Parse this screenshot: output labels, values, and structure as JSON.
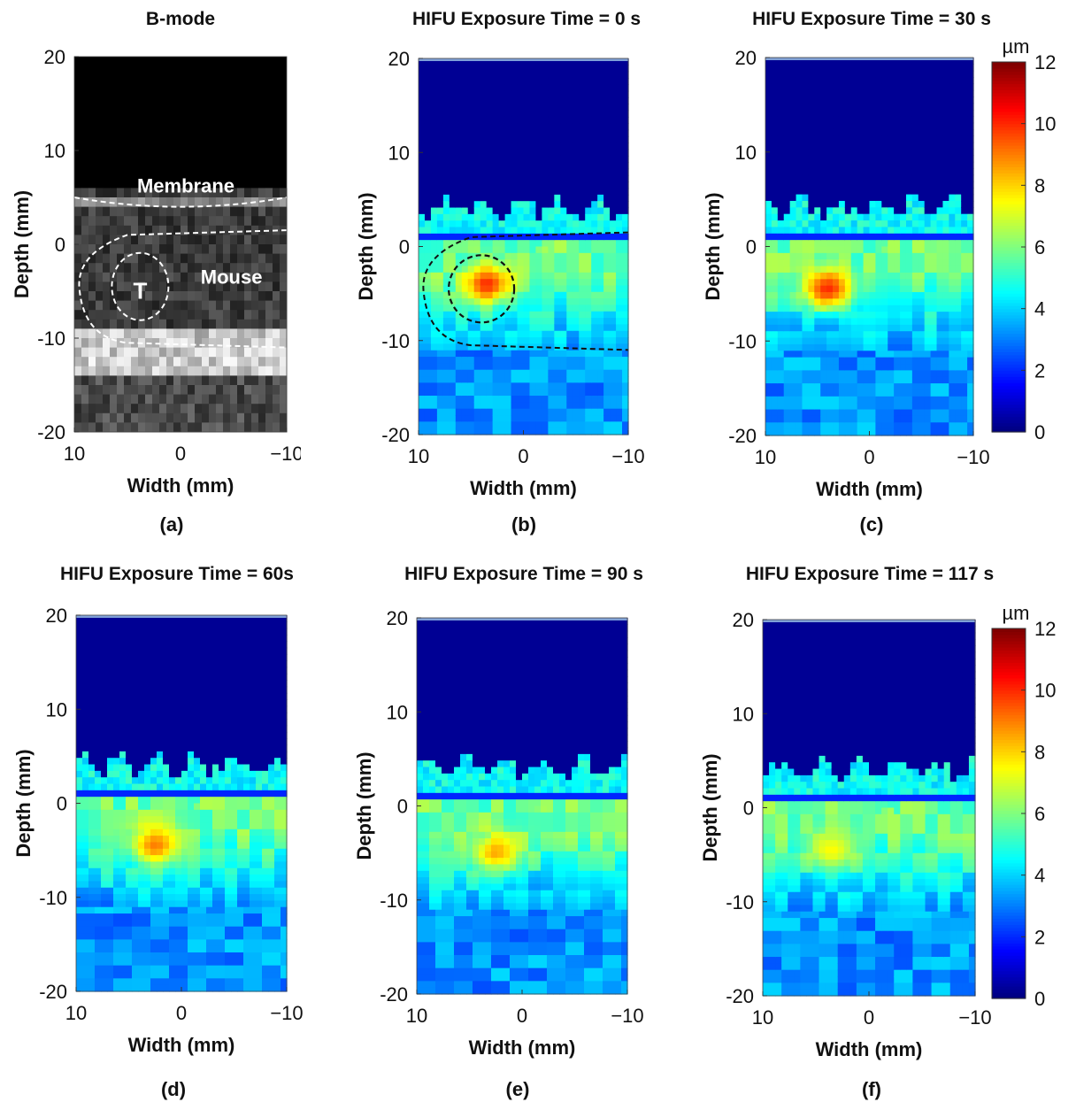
{
  "figure": {
    "panels": [
      {
        "id": "a",
        "title": "B-mode",
        "tag": "(a)",
        "type": "bmode",
        "xlabel": "Width (mm)",
        "ylabel": "Depth (mm)",
        "xticks": [
          "10",
          "0",
          "−10"
        ],
        "yticks": [
          "20",
          "10",
          "0",
          "-10",
          "-20"
        ],
        "annotations": {
          "membrane": "Membrane",
          "mouse": "Mouse",
          "tumor": "T"
        }
      },
      {
        "id": "b",
        "title": "HIFU Exposure Time = 0 s",
        "tag": "(b)",
        "type": "heatmap",
        "xlabel": "Width (mm)",
        "ylabel": "Depth (mm)",
        "xticks": [
          "10",
          "0",
          "−10"
        ],
        "yticks": [
          "20",
          "10",
          "0",
          "-10",
          "-20"
        ]
      },
      {
        "id": "c",
        "title": "HIFU Exposure Time = 30 s",
        "tag": "(c)",
        "type": "heatmap",
        "xlabel": "Width (mm)",
        "ylabel": "Depth (mm)",
        "xticks": [
          "10",
          "0",
          "−10"
        ],
        "yticks": [
          "20",
          "10",
          "0",
          "-10",
          "-20"
        ]
      },
      {
        "id": "d",
        "title": "HIFU Exposure Time = 60s",
        "tag": "(d)",
        "type": "heatmap",
        "xlabel": "Width (mm)",
        "ylabel": "Depth (mm)",
        "xticks": [
          "10",
          "0",
          "−10"
        ],
        "yticks": [
          "20",
          "10",
          "0",
          "-10",
          "-20"
        ]
      },
      {
        "id": "e",
        "title": "HIFU Exposure Time = 90 s",
        "tag": "(e)",
        "type": "heatmap",
        "xlabel": "Width (mm)",
        "ylabel": "Depth (mm)",
        "xticks": [
          "10",
          "0",
          "−10"
        ],
        "yticks": [
          "20",
          "10",
          "0",
          "-10",
          "-20"
        ]
      },
      {
        "id": "f",
        "title": "HIFU Exposure Time = 117 s",
        "tag": "(f)",
        "type": "heatmap",
        "xlabel": "Width (mm)",
        "ylabel": "Depth (mm)",
        "xticks": [
          "10",
          "0",
          "−10"
        ],
        "yticks": [
          "20",
          "10",
          "0",
          "-10",
          "-20"
        ]
      }
    ],
    "colorbar": {
      "unit": "µm",
      "ticks": [
        "0",
        "2",
        "4",
        "6",
        "8",
        "10",
        "12"
      ]
    }
  },
  "chart_data": [
    {
      "type": "heatmap",
      "title": "B-mode",
      "xlabel": "Width (mm)",
      "ylabel": "Depth (mm)",
      "xlim": [
        10,
        -10
      ],
      "ylim": [
        -20,
        20
      ],
      "grid": false,
      "colormap": "gray",
      "annotations": [
        "Membrane",
        "Mouse",
        "T"
      ]
    },
    {
      "type": "heatmap",
      "title": "HIFU Exposure Time = 0 s",
      "xlabel": "Width (mm)",
      "ylabel": "Depth (mm)",
      "xlim": [
        10,
        -10
      ],
      "ylim": [
        -20,
        20
      ],
      "colormap": "jet",
      "clim": [
        0,
        12
      ],
      "unit": "µm",
      "hotspot": {
        "x": 3.5,
        "y": -4,
        "peak": 10
      }
    },
    {
      "type": "heatmap",
      "title": "HIFU Exposure Time = 30 s",
      "xlabel": "Width (mm)",
      "ylabel": "Depth (mm)",
      "xlim": [
        10,
        -10
      ],
      "ylim": [
        -20,
        20
      ],
      "colormap": "jet",
      "clim": [
        0,
        12
      ],
      "unit": "µm",
      "hotspot": {
        "x": 4,
        "y": -4.5,
        "peak": 10
      }
    },
    {
      "type": "heatmap",
      "title": "HIFU Exposure Time = 60s",
      "xlabel": "Width (mm)",
      "ylabel": "Depth (mm)",
      "xlim": [
        10,
        -10
      ],
      "ylim": [
        -20,
        20
      ],
      "colormap": "jet",
      "clim": [
        0,
        12
      ],
      "unit": "µm",
      "hotspot": {
        "x": 2.5,
        "y": -4.5,
        "peak": 9
      }
    },
    {
      "type": "heatmap",
      "title": "HIFU Exposure Time = 90 s",
      "xlabel": "Width (mm)",
      "ylabel": "Depth (mm)",
      "xlim": [
        10,
        -10
      ],
      "ylim": [
        -20,
        20
      ],
      "colormap": "jet",
      "clim": [
        0,
        12
      ],
      "unit": "µm",
      "hotspot": {
        "x": 2.5,
        "y": -5,
        "peak": 8.5
      }
    },
    {
      "type": "heatmap",
      "title": "HIFU Exposure Time = 117 s",
      "xlabel": "Width (mm)",
      "ylabel": "Depth (mm)",
      "xlim": [
        10,
        -10
      ],
      "ylim": [
        -20,
        20
      ],
      "colormap": "jet",
      "clim": [
        0,
        12
      ],
      "unit": "µm",
      "hotspot": {
        "x": 3.5,
        "y": -4.5,
        "peak": 7.5
      }
    }
  ]
}
